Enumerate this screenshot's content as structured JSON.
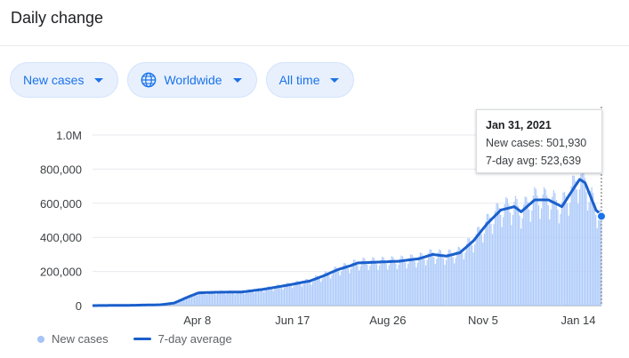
{
  "header": {
    "title": "Daily change"
  },
  "filters": [
    {
      "label": "New cases",
      "icon": ""
    },
    {
      "label": "Worldwide",
      "icon": "globe-icon"
    },
    {
      "label": "All time",
      "icon": ""
    }
  ],
  "tooltip": {
    "date": "Jan 31, 2021",
    "new_cases": "New cases: 501,930",
    "avg": "7-day avg: 523,639"
  },
  "legend": {
    "bars": "New cases",
    "line": "7-day average"
  },
  "colors": {
    "accent": "#1a73e8",
    "bar": "#aecbfa",
    "line": "#1a5fcc"
  },
  "chart_data": {
    "type": "bar",
    "ylim": [
      0,
      1000000
    ],
    "yticks": [
      0,
      200000,
      400000,
      600000,
      800000,
      1000000
    ],
    "ytick_labels": [
      "0",
      "200,000",
      "400,000",
      "600,000",
      "800,000",
      "1.0M"
    ],
    "xticks_idx": [
      77,
      147,
      217,
      287,
      357
    ],
    "xtick_labels": [
      "Apr 8",
      "Jun 17",
      "Aug 26",
      "Nov 5",
      "Jan 14"
    ],
    "n_days": 375,
    "series": [
      {
        "name": "New cases",
        "type": "bar"
      },
      {
        "name": "7-day average",
        "type": "line"
      }
    ],
    "avg_keypoints": [
      [
        0,
        0
      ],
      [
        30,
        2000
      ],
      [
        50,
        5000
      ],
      [
        60,
        15000
      ],
      [
        70,
        50000
      ],
      [
        78,
        75000
      ],
      [
        90,
        78000
      ],
      [
        110,
        80000
      ],
      [
        125,
        95000
      ],
      [
        140,
        115000
      ],
      [
        147,
        125000
      ],
      [
        160,
        145000
      ],
      [
        170,
        175000
      ],
      [
        180,
        210000
      ],
      [
        190,
        235000
      ],
      [
        195,
        250000
      ],
      [
        210,
        255000
      ],
      [
        225,
        260000
      ],
      [
        240,
        275000
      ],
      [
        250,
        300000
      ],
      [
        260,
        290000
      ],
      [
        270,
        310000
      ],
      [
        280,
        380000
      ],
      [
        290,
        480000
      ],
      [
        300,
        560000
      ],
      [
        310,
        580000
      ],
      [
        315,
        550000
      ],
      [
        325,
        620000
      ],
      [
        335,
        620000
      ],
      [
        345,
        580000
      ],
      [
        353,
        680000
      ],
      [
        358,
        740000
      ],
      [
        362,
        720000
      ],
      [
        366,
        640000
      ],
      [
        370,
        560000
      ],
      [
        375,
        523639
      ]
    ],
    "last_point": {
      "new_cases": 501930,
      "avg": 523639
    }
  }
}
